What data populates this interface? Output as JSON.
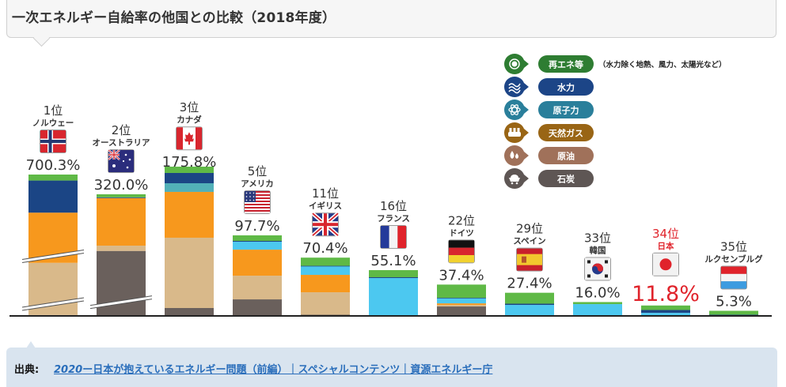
{
  "title": "一次エネルギー自給率の他国との比較（2018年度）",
  "legend": {
    "note": "（水力除く地熱、風力、太陽光など）",
    "items": [
      {
        "key": "renewable",
        "label": "再エネ等",
        "icon": "sun-icon",
        "color": "#2e7d32"
      },
      {
        "key": "hydro",
        "label": "水力",
        "icon": "water-wave-icon",
        "color": "#1c4587"
      },
      {
        "key": "nuclear",
        "label": "原子力",
        "icon": "atom-icon",
        "color": "#2a7f9b"
      },
      {
        "key": "gas",
        "label": "天然ガス",
        "icon": "gas-tank-icon",
        "color": "#996515"
      },
      {
        "key": "oil",
        "label": "原油",
        "icon": "oil-drop-icon",
        "color": "#a0715a"
      },
      {
        "key": "coal",
        "label": "石炭",
        "icon": "coal-cart-icon",
        "color": "#5e5654"
      }
    ]
  },
  "chart_data": {
    "type": "bar",
    "stacked": true,
    "title": "一次エネルギー自給率の他国との比較（2018年度）",
    "xlabel": "",
    "ylabel": "",
    "unit": "%",
    "segment_order": [
      "coal",
      "oil",
      "gas",
      "nuclear",
      "hydro",
      "renewable"
    ],
    "segment_colors": {
      "renewable": "#5fb946",
      "hydro": "#1b4585",
      "nuclear": "#4cc8f0",
      "nuclear_alt": "#52b0b8",
      "gas": "#f7981d",
      "oil": "#d9b98a",
      "coal": "#6a605c"
    },
    "countries": [
      {
        "rank": "1位",
        "name": "ノルウェー",
        "flag": "norway",
        "total": 700.3,
        "total_label": "700.3%",
        "axis_break": true,
        "segments": {
          "coal": 0.5,
          "oil": 260,
          "gas": 250,
          "nuclear": 0,
          "hydro": 160,
          "renewable": 29.8
        }
      },
      {
        "rank": "2位",
        "name": "オーストラリア",
        "flag": "australia",
        "total": 320.0,
        "total_label": "320.0%",
        "axis_break": true,
        "segments": {
          "coal": 170,
          "oil": 14,
          "gas": 126,
          "nuclear": 0,
          "hydro": 2,
          "renewable": 8
        }
      },
      {
        "rank": "3位",
        "name": "カナダ",
        "flag": "canada",
        "total": 175.8,
        "total_label": "175.8%",
        "axis_break": false,
        "segments": {
          "coal": 8.7,
          "oil": 86.1,
          "gas": 56.1,
          "nuclear": 10.6,
          "hydro": 12.6,
          "renewable": 7.7
        }
      },
      {
        "rank": "5位",
        "name": "アメリカ",
        "flag": "usa",
        "total": 97.7,
        "total_label": "97.7%",
        "axis_break": false,
        "segments": {
          "coal": 19.3,
          "oil": 29.0,
          "gas": 31.9,
          "nuclear": 9.7,
          "hydro": 1.0,
          "renewable": 6.8
        }
      },
      {
        "rank": "11位",
        "name": "イギリス",
        "flag": "uk",
        "total": 70.4,
        "total_label": "70.4%",
        "axis_break": false,
        "segments": {
          "coal": 0.5,
          "oil": 27.5,
          "gas": 21.3,
          "nuclear": 10.6,
          "hydro": 0.5,
          "renewable": 10.0
        }
      },
      {
        "rank": "16位",
        "name": "フランス",
        "flag": "france",
        "total": 55.1,
        "total_label": "55.1%",
        "axis_break": false,
        "segments": {
          "coal": 0,
          "oil": 0,
          "gas": 0,
          "nuclear": 45.4,
          "hydro": 1.0,
          "renewable": 8.7
        }
      },
      {
        "rank": "22位",
        "name": "ドイツ",
        "flag": "germany",
        "total": 37.4,
        "total_label": "37.4%",
        "axis_break": false,
        "segments": {
          "coal": 10.6,
          "oil": 1.9,
          "gas": 1.9,
          "nuclear": 6.3,
          "hydro": 0.5,
          "renewable": 16.2
        }
      },
      {
        "rank": "29位",
        "name": "スペイン",
        "flag": "spain",
        "total": 27.4,
        "total_label": "27.4%",
        "axis_break": false,
        "segments": {
          "coal": 0,
          "oil": 0,
          "gas": 0,
          "nuclear": 12.5,
          "hydro": 1.5,
          "renewable": 13.4
        }
      },
      {
        "rank": "33位",
        "name": "韓国",
        "flag": "korea",
        "total": 16.0,
        "total_label": "16.0%",
        "axis_break": false,
        "segments": {
          "coal": 0,
          "oil": 0,
          "gas": 0,
          "nuclear": 13.5,
          "hydro": 0,
          "renewable": 2.5
        }
      },
      {
        "rank": "34位",
        "name": "日本",
        "flag": "japan",
        "total": 11.8,
        "total_label": "11.8%",
        "axis_break": false,
        "highlight": true,
        "segments": {
          "coal": 0,
          "oil": 0,
          "gas": 0,
          "nuclear": 2.8,
          "hydro": 3.5,
          "renewable": 5.5
        }
      },
      {
        "rank": "35位",
        "name": "ルクセンブルグ",
        "flag": "luxembourg",
        "total": 5.3,
        "total_label": "5.3%",
        "axis_break": false,
        "segments": {
          "coal": 0,
          "oil": 0,
          "gas": 0,
          "nuclear": 0,
          "hydro": 0.5,
          "renewable": 4.8
        }
      }
    ],
    "highlight_color": "#e0232b",
    "text_color": "#333333"
  },
  "footer": {
    "source_label": "出典:",
    "link_year": "2020",
    "link_text": "ー日本が抱えているエネルギー問題（前編）｜スペシャルコンテンツ｜資源エネルギー庁"
  }
}
